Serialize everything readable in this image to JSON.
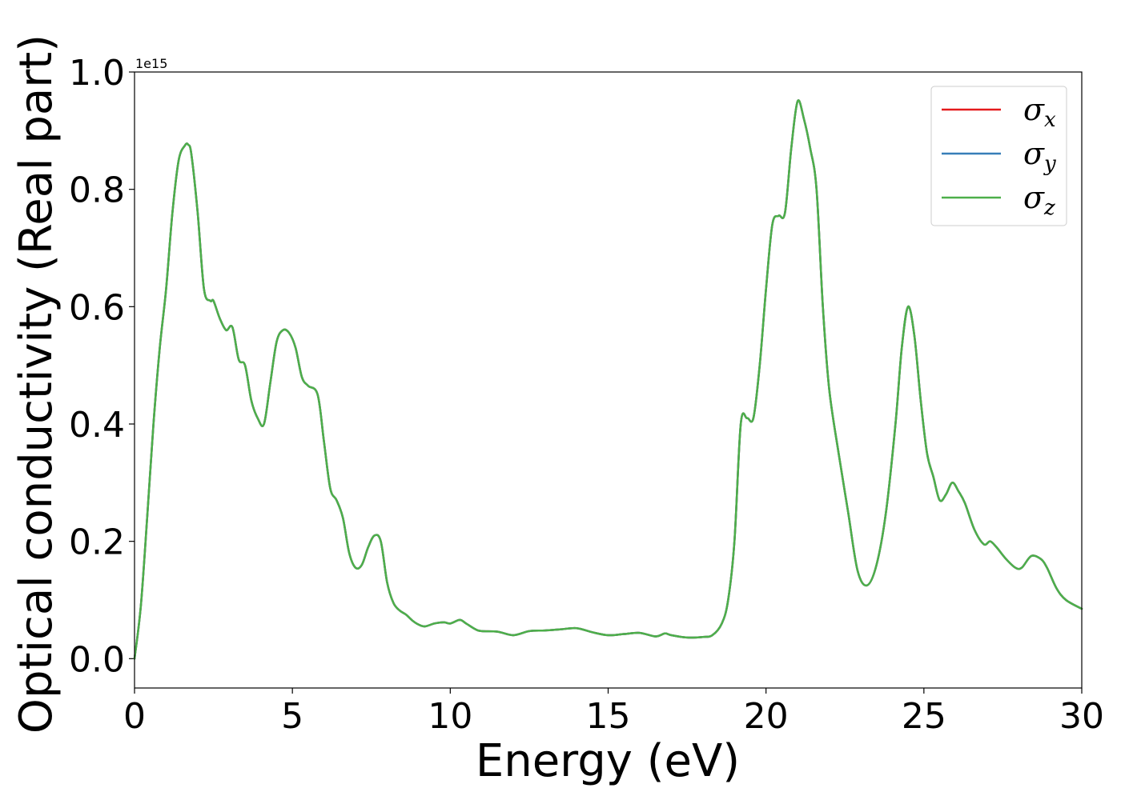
{
  "chart_data": {
    "type": "line",
    "title": "",
    "xlabel": "Energy (eV)",
    "ylabel": "Optical conductivity (Real part)",
    "y_offset_label": "1e15",
    "xlim": [
      0,
      30
    ],
    "ylim": [
      -0.05,
      1.0
    ],
    "xticks": [
      "0",
      "5",
      "10",
      "15",
      "20",
      "25",
      "30"
    ],
    "yticks": [
      "0.0",
      "0.2",
      "0.4",
      "0.6",
      "0.8",
      "1.0"
    ],
    "grid": false,
    "legend_position": "top-right",
    "x": [
      0,
      0.2,
      0.4,
      0.6,
      0.8,
      1.0,
      1.2,
      1.4,
      1.6,
      1.7,
      1.8,
      2.0,
      2.2,
      2.4,
      2.5,
      2.7,
      2.9,
      3.1,
      3.3,
      3.5,
      3.7,
      3.9,
      4.1,
      4.3,
      4.5,
      4.7,
      4.9,
      5.1,
      5.3,
      5.5,
      5.8,
      6.0,
      6.2,
      6.4,
      6.6,
      6.8,
      7.0,
      7.2,
      7.4,
      7.6,
      7.8,
      8.0,
      8.2,
      8.4,
      8.6,
      8.8,
      9.0,
      9.2,
      9.5,
      9.8,
      10.0,
      10.3,
      10.5,
      10.8,
      11.0,
      11.5,
      12.0,
      12.5,
      13.0,
      13.5,
      14.0,
      14.5,
      15.0,
      15.5,
      16.0,
      16.5,
      16.8,
      17.0,
      17.5,
      18.0,
      18.3,
      18.6,
      18.8,
      19.0,
      19.2,
      19.4,
      19.6,
      19.8,
      20.0,
      20.2,
      20.4,
      20.6,
      20.8,
      21.0,
      21.2,
      21.4,
      21.6,
      21.8,
      22.0,
      22.3,
      22.6,
      22.9,
      23.2,
      23.5,
      23.8,
      24.1,
      24.3,
      24.5,
      24.7,
      24.9,
      25.1,
      25.3,
      25.5,
      25.7,
      25.9,
      26.1,
      26.3,
      26.6,
      26.9,
      27.1,
      27.3,
      27.6,
      27.9,
      28.1,
      28.4,
      28.7,
      28.9,
      29.2,
      29.5,
      30.0
    ],
    "series": [
      {
        "name": "σx",
        "sub": "x",
        "color": "#e41a1c",
        "values": [
          0.0,
          0.09,
          0.24,
          0.4,
          0.53,
          0.63,
          0.76,
          0.85,
          0.875,
          0.876,
          0.86,
          0.76,
          0.63,
          0.61,
          0.61,
          0.58,
          0.56,
          0.565,
          0.51,
          0.5,
          0.44,
          0.41,
          0.4,
          0.47,
          0.54,
          0.56,
          0.555,
          0.53,
          0.48,
          0.465,
          0.45,
          0.37,
          0.29,
          0.27,
          0.24,
          0.18,
          0.155,
          0.16,
          0.19,
          0.21,
          0.2,
          0.13,
          0.095,
          0.082,
          0.075,
          0.065,
          0.058,
          0.055,
          0.06,
          0.062,
          0.06,
          0.066,
          0.06,
          0.05,
          0.047,
          0.046,
          0.04,
          0.047,
          0.048,
          0.05,
          0.052,
          0.045,
          0.04,
          0.042,
          0.044,
          0.038,
          0.043,
          0.04,
          0.036,
          0.037,
          0.04,
          0.06,
          0.1,
          0.2,
          0.4,
          0.41,
          0.41,
          0.5,
          0.63,
          0.74,
          0.755,
          0.76,
          0.87,
          0.95,
          0.92,
          0.87,
          0.8,
          0.6,
          0.46,
          0.35,
          0.25,
          0.15,
          0.125,
          0.16,
          0.25,
          0.4,
          0.53,
          0.6,
          0.55,
          0.44,
          0.35,
          0.31,
          0.27,
          0.28,
          0.3,
          0.285,
          0.265,
          0.22,
          0.195,
          0.2,
          0.19,
          0.17,
          0.155,
          0.155,
          0.175,
          0.17,
          0.155,
          0.12,
          0.1,
          0.085
        ]
      },
      {
        "name": "σy",
        "sub": "y",
        "color": "#377eb8",
        "values": [
          0.0,
          0.09,
          0.24,
          0.4,
          0.53,
          0.63,
          0.76,
          0.85,
          0.875,
          0.876,
          0.86,
          0.76,
          0.63,
          0.61,
          0.61,
          0.58,
          0.56,
          0.565,
          0.51,
          0.5,
          0.44,
          0.41,
          0.4,
          0.47,
          0.54,
          0.56,
          0.555,
          0.53,
          0.48,
          0.465,
          0.45,
          0.37,
          0.29,
          0.27,
          0.24,
          0.18,
          0.155,
          0.16,
          0.19,
          0.21,
          0.2,
          0.13,
          0.095,
          0.082,
          0.075,
          0.065,
          0.058,
          0.055,
          0.06,
          0.062,
          0.06,
          0.066,
          0.06,
          0.05,
          0.047,
          0.046,
          0.04,
          0.047,
          0.048,
          0.05,
          0.052,
          0.045,
          0.04,
          0.042,
          0.044,
          0.038,
          0.043,
          0.04,
          0.036,
          0.037,
          0.04,
          0.06,
          0.1,
          0.2,
          0.4,
          0.41,
          0.41,
          0.5,
          0.63,
          0.74,
          0.755,
          0.76,
          0.87,
          0.95,
          0.92,
          0.87,
          0.8,
          0.6,
          0.46,
          0.35,
          0.25,
          0.15,
          0.125,
          0.16,
          0.25,
          0.4,
          0.53,
          0.6,
          0.55,
          0.44,
          0.35,
          0.31,
          0.27,
          0.28,
          0.3,
          0.285,
          0.265,
          0.22,
          0.195,
          0.2,
          0.19,
          0.17,
          0.155,
          0.155,
          0.175,
          0.17,
          0.155,
          0.12,
          0.1,
          0.085
        ]
      },
      {
        "name": "σz",
        "sub": "z",
        "color": "#4daf4a",
        "values": [
          0.0,
          0.09,
          0.24,
          0.4,
          0.53,
          0.63,
          0.76,
          0.85,
          0.875,
          0.876,
          0.86,
          0.76,
          0.63,
          0.61,
          0.61,
          0.58,
          0.56,
          0.565,
          0.51,
          0.5,
          0.44,
          0.41,
          0.4,
          0.47,
          0.54,
          0.56,
          0.555,
          0.53,
          0.48,
          0.465,
          0.45,
          0.37,
          0.29,
          0.27,
          0.24,
          0.18,
          0.155,
          0.16,
          0.19,
          0.21,
          0.2,
          0.13,
          0.095,
          0.082,
          0.075,
          0.065,
          0.058,
          0.055,
          0.06,
          0.062,
          0.06,
          0.066,
          0.06,
          0.05,
          0.047,
          0.046,
          0.04,
          0.047,
          0.048,
          0.05,
          0.052,
          0.045,
          0.04,
          0.042,
          0.044,
          0.038,
          0.043,
          0.04,
          0.036,
          0.037,
          0.04,
          0.06,
          0.1,
          0.2,
          0.4,
          0.41,
          0.41,
          0.5,
          0.63,
          0.74,
          0.755,
          0.76,
          0.87,
          0.95,
          0.92,
          0.87,
          0.8,
          0.6,
          0.46,
          0.35,
          0.25,
          0.15,
          0.125,
          0.16,
          0.25,
          0.4,
          0.53,
          0.6,
          0.55,
          0.44,
          0.35,
          0.31,
          0.27,
          0.28,
          0.3,
          0.285,
          0.265,
          0.22,
          0.195,
          0.2,
          0.19,
          0.17,
          0.155,
          0.155,
          0.175,
          0.17,
          0.155,
          0.12,
          0.1,
          0.085
        ]
      }
    ]
  }
}
